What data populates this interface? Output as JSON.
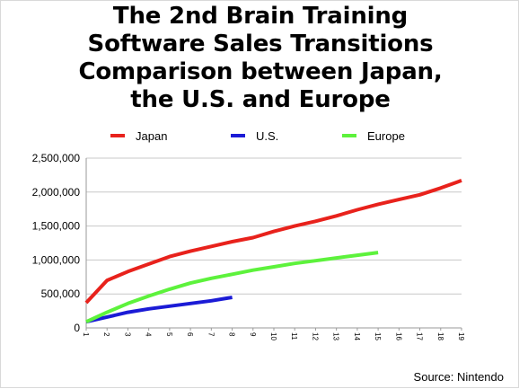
{
  "chart_data": {
    "type": "line",
    "title_lines": [
      "The 2nd Brain Training",
      "Software Sales Transitions",
      "Comparison between Japan,",
      "the U.S. and Europe"
    ],
    "x": [
      1,
      2,
      3,
      4,
      5,
      6,
      7,
      8,
      9,
      10,
      11,
      12,
      13,
      14,
      15,
      16,
      17,
      18,
      19
    ],
    "xlim": [
      1,
      19
    ],
    "ylim": [
      0,
      2500000
    ],
    "y_ticks": [
      0,
      500000,
      1000000,
      1500000,
      2000000,
      2500000
    ],
    "y_tick_labels": [
      "0",
      "500,000",
      "1,000,000",
      "1,500,000",
      "2,000,000",
      "2,500,000"
    ],
    "grid": "horizontal",
    "legend_position": "top",
    "series": [
      {
        "name": "Japan",
        "color": "#e8221c",
        "x": [
          1,
          2,
          3,
          4,
          5,
          6,
          7,
          8,
          9,
          10,
          11,
          12,
          13,
          14,
          15,
          16,
          17,
          18,
          19
        ],
        "values": [
          370000,
          700000,
          830000,
          940000,
          1050000,
          1130000,
          1200000,
          1270000,
          1330000,
          1420000,
          1500000,
          1570000,
          1650000,
          1740000,
          1820000,
          1890000,
          1960000,
          2060000,
          2170000
        ]
      },
      {
        "name": "U.S.",
        "color": "#1b1bd6",
        "x": [
          1,
          2,
          3,
          4,
          5,
          6,
          7,
          8
        ],
        "values": [
          90000,
          160000,
          230000,
          280000,
          320000,
          360000,
          400000,
          450000
        ]
      },
      {
        "name": "Europe",
        "color": "#5df23c",
        "x": [
          1,
          2,
          3,
          4,
          5,
          6,
          7,
          8,
          9,
          10,
          11,
          12,
          13,
          14,
          15
        ],
        "values": [
          90000,
          230000,
          360000,
          470000,
          570000,
          660000,
          730000,
          790000,
          850000,
          900000,
          950000,
          990000,
          1030000,
          1070000,
          1110000
        ]
      }
    ]
  },
  "source": "Source: Nintendo"
}
